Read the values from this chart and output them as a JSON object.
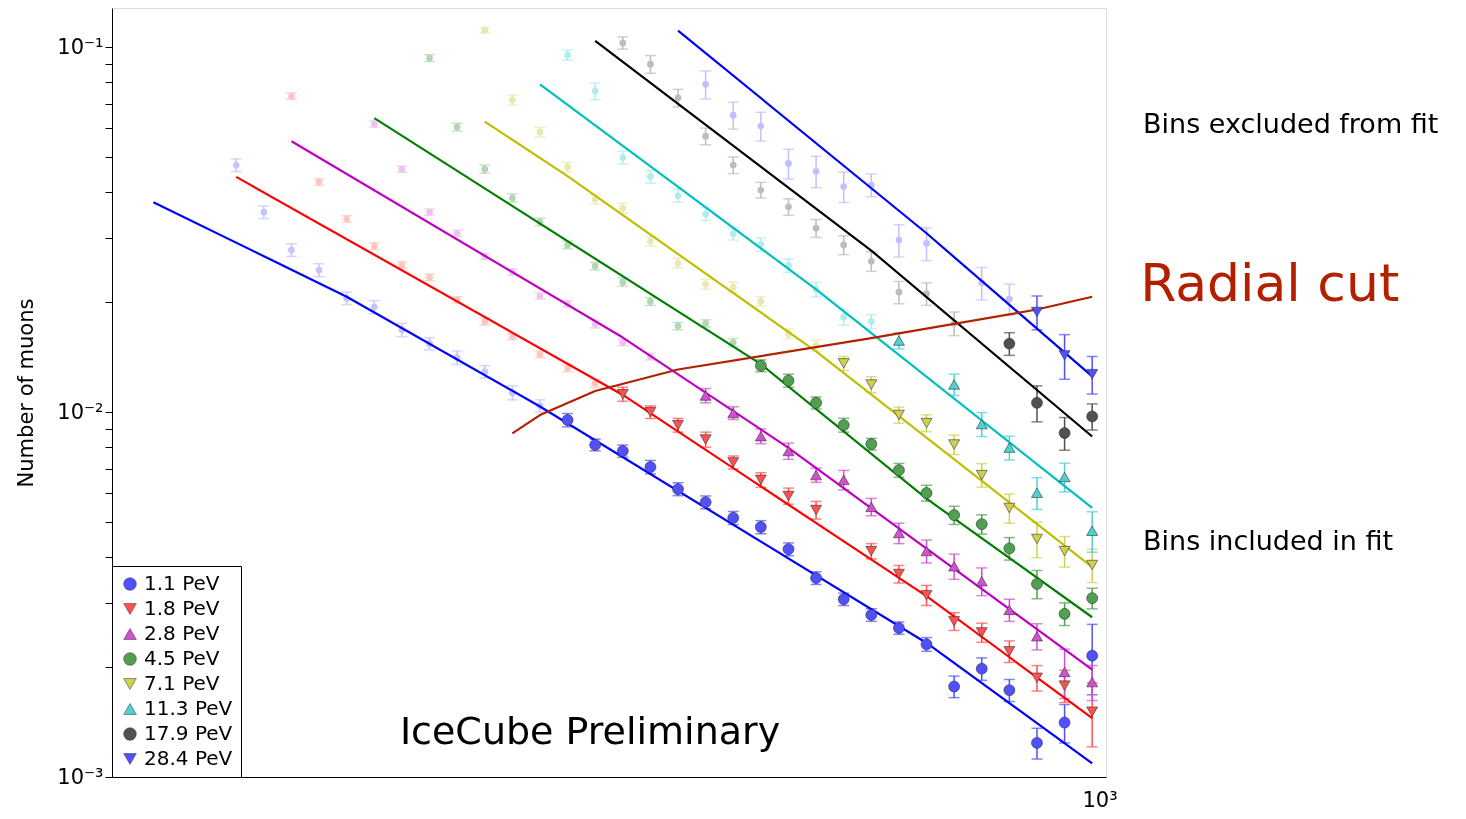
{
  "chart_data": {
    "type": "scatter",
    "ylabel": "Number of muons",
    "log": "y",
    "grid": false,
    "legend": "bottom left",
    "categories": [
      null,
      null,
      null,
      null,
      null,
      null,
      null,
      null,
      null,
      null,
      null,
      null,
      null,
      null,
      null,
      null,
      null,
      null,
      null,
      null,
      null,
      null,
      null,
      null,
      null,
      null,
      null,
      null,
      null,
      null,
      null,
      null,
      null,
      null,
      null,
      null
    ],
    "ylim": [
      0.001,
      0.128
    ],
    "yticks": [
      {
        "value": 0.001,
        "label": "10⁻³"
      },
      {
        "value": 0.002,
        "label": null
      },
      {
        "value": 0.003,
        "label": null
      },
      {
        "value": 0.004,
        "label": null
      },
      {
        "value": 0.005,
        "label": null
      },
      {
        "value": 0.006,
        "label": null
      },
      {
        "value": 0.007,
        "label": null
      },
      {
        "value": 0.008,
        "label": null
      },
      {
        "value": 0.009,
        "label": null
      },
      {
        "value": 0.01,
        "label": "10⁻²"
      },
      {
        "value": 0.02,
        "label": null
      },
      {
        "value": 0.03,
        "label": null
      },
      {
        "value": 0.04,
        "label": null
      },
      {
        "value": 0.05,
        "label": null
      },
      {
        "value": 0.06,
        "label": null
      },
      {
        "value": 0.07,
        "label": null
      },
      {
        "value": 0.08,
        "label": null
      },
      {
        "value": 0.09,
        "label": null
      },
      {
        "value": 0.1,
        "label": "10⁻¹"
      }
    ],
    "annotations": [
      "Bins excluded from fit",
      "Bins included in fit",
      "IceCube Preliminary",
      "10³"
    ],
    "series": [
      {
        "name": "1.1 PeV",
        "marker": "circle",
        "color": "#5050ff",
        "values": [
          null,
          null,
          null,
          null,
          null,
          null,
          null,
          null,
          null,
          null,
          null,
          null,
          null,
          null,
          null,
          null,
          0.00951,
          0.00813,
          0.00782,
          0.00707,
          0.00615,
          0.00566,
          0.00513,
          0.00484,
          0.00421,
          0.00351,
          0.00307,
          0.00278,
          0.00256,
          0.00231,
          0.00177,
          0.00198,
          0.00173,
          0.00124,
          0.00141,
          0.00215
        ],
        "errors": [
          null,
          null,
          null,
          null,
          null,
          null,
          null,
          null,
          null,
          null,
          null,
          null,
          null,
          null,
          null,
          null,
          0.0004,
          0.0003,
          0.0003,
          0.0003,
          0.00025,
          0.00023,
          0.00021,
          0.0002,
          0.00017,
          0.00014,
          0.00012,
          0.00011,
          0.0001,
          0.0001,
          0.00012,
          0.00014,
          0.00012,
          0.00012,
          0.00017,
          0.00047
        ]
      },
      {
        "name": "1.8 PeV",
        "marker": "triangle_down",
        "color": "#ff5050",
        "values": [
          null,
          null,
          null,
          null,
          null,
          null,
          null,
          null,
          null,
          null,
          null,
          null,
          null,
          null,
          null,
          null,
          null,
          null,
          0.0112,
          0.01,
          0.00921,
          0.00841,
          0.00728,
          0.00652,
          0.00589,
          0.00539,
          null,
          0.00416,
          0.0036,
          0.00315,
          0.00267,
          0.00249,
          0.00221,
          0.00187,
          0.00178,
          0.00151
        ],
        "errors": [
          null,
          null,
          null,
          null,
          null,
          null,
          null,
          null,
          null,
          null,
          null,
          null,
          null,
          null,
          null,
          null,
          null,
          null,
          0.0005,
          0.0004,
          0.0004,
          0.0004,
          0.0003,
          0.0003,
          0.0003,
          0.0003,
          null,
          0.0002,
          0.0002,
          0.0002,
          0.00015,
          0.00015,
          0.00015,
          0.00015,
          0.00018,
          0.0003
        ]
      },
      {
        "name": "2.8 PeV",
        "marker": "triangle",
        "color": "#d050d0",
        "values": [
          null,
          null,
          null,
          null,
          null,
          null,
          null,
          null,
          null,
          null,
          null,
          null,
          null,
          null,
          null,
          null,
          null,
          null,
          null,
          null,
          null,
          0.0111,
          0.00994,
          0.00859,
          0.00782,
          0.00672,
          0.00652,
          0.0055,
          0.00466,
          0.00416,
          0.00378,
          0.00344,
          0.00287,
          0.00243,
          0.00194,
          0.00182
        ],
        "errors": [
          null,
          null,
          null,
          null,
          null,
          null,
          null,
          null,
          null,
          null,
          null,
          null,
          null,
          null,
          null,
          null,
          null,
          null,
          null,
          null,
          null,
          0.0005,
          0.0004,
          0.0004,
          0.0004,
          0.0003,
          0.0004,
          0.0003,
          0.0003,
          0.0003,
          0.0003,
          0.0003,
          0.0002,
          0.0002,
          0.0003,
          0.0002
        ]
      },
      {
        "name": "4.5 PeV",
        "marker": "circle",
        "color": "#50a050",
        "values": [
          null,
          null,
          null,
          null,
          null,
          null,
          null,
          null,
          null,
          null,
          null,
          null,
          null,
          null,
          null,
          null,
          null,
          null,
          null,
          null,
          null,
          null,
          null,
          0.0134,
          0.0122,
          0.0106,
          0.00921,
          0.00817,
          0.00693,
          0.006,
          0.00522,
          0.00493,
          0.00423,
          0.00338,
          0.0028,
          0.00309
        ],
        "errors": [
          null,
          null,
          null,
          null,
          null,
          null,
          null,
          null,
          null,
          null,
          null,
          null,
          null,
          null,
          null,
          null,
          null,
          null,
          null,
          null,
          null,
          null,
          null,
          0.0005,
          0.0005,
          0.0004,
          0.0004,
          0.0003,
          0.0003,
          0.0003,
          0.0003,
          0.0003,
          0.0003,
          0.0003,
          0.0002,
          0.0002
        ]
      },
      {
        "name": "7.1 PeV",
        "marker": "triangle_down",
        "color": "#d0d050",
        "values": [
          null,
          null,
          null,
          null,
          null,
          null,
          null,
          null,
          null,
          null,
          null,
          null,
          null,
          null,
          null,
          null,
          null,
          null,
          null,
          null,
          null,
          null,
          null,
          null,
          null,
          null,
          0.0136,
          0.0119,
          0.00982,
          0.00933,
          0.00815,
          0.00672,
          0.00546,
          0.00449,
          0.00416,
          0.00381
        ],
        "errors": [
          null,
          null,
          null,
          null,
          null,
          null,
          null,
          null,
          null,
          null,
          null,
          null,
          null,
          null,
          null,
          null,
          null,
          null,
          null,
          null,
          null,
          null,
          null,
          null,
          null,
          null,
          0.0006,
          0.0006,
          0.0005,
          0.0005,
          0.0005,
          0.0005,
          0.0005,
          0.0005,
          0.0004,
          0.0004
        ]
      },
      {
        "name": "11.3 PeV",
        "marker": "triangle",
        "color": "#50d0d0",
        "values": [
          null,
          null,
          null,
          null,
          null,
          null,
          null,
          null,
          null,
          null,
          null,
          null,
          null,
          null,
          null,
          null,
          null,
          null,
          null,
          null,
          null,
          null,
          null,
          null,
          null,
          null,
          null,
          null,
          0.0157,
          null,
          0.0119,
          0.00927,
          0.00799,
          0.00601,
          0.00664,
          0.00473
        ],
        "errors": [
          null,
          null,
          null,
          null,
          null,
          null,
          null,
          null,
          null,
          null,
          null,
          null,
          null,
          null,
          null,
          null,
          null,
          null,
          null,
          null,
          null,
          null,
          null,
          null,
          null,
          null,
          null,
          null,
          0.0008,
          null,
          0.0008,
          0.0007,
          0.0006,
          0.0006,
          0.0006,
          0.0006
        ]
      },
      {
        "name": "17.9 PeV",
        "marker": "circle",
        "color": "#505050",
        "values": [
          null,
          null,
          null,
          null,
          null,
          null,
          null,
          null,
          null,
          null,
          null,
          null,
          null,
          null,
          null,
          null,
          null,
          null,
          null,
          null,
          null,
          null,
          null,
          null,
          null,
          null,
          null,
          null,
          null,
          null,
          null,
          null,
          0.0154,
          0.0106,
          0.00876,
          0.00973
        ],
        "errors": [
          null,
          null,
          null,
          null,
          null,
          null,
          null,
          null,
          null,
          null,
          null,
          null,
          null,
          null,
          null,
          null,
          null,
          null,
          null,
          null,
          null,
          null,
          null,
          null,
          null,
          null,
          null,
          null,
          null,
          null,
          null,
          null,
          0.0011,
          0.0012,
          0.0009,
          0.0008
        ]
      },
      {
        "name": "28.4 PeV",
        "marker": "triangle_down",
        "color": "#5050ff",
        "values": [
          null,
          null,
          null,
          null,
          null,
          null,
          null,
          null,
          null,
          null,
          null,
          null,
          null,
          null,
          null,
          null,
          null,
          null,
          null,
          null,
          null,
          null,
          null,
          null,
          null,
          null,
          null,
          null,
          null,
          null,
          null,
          null,
          null,
          0.0188,
          0.0143,
          0.0127
        ],
        "errors": [
          null,
          null,
          null,
          null,
          null,
          null,
          null,
          null,
          null,
          null,
          null,
          null,
          null,
          null,
          null,
          null,
          null,
          null,
          null,
          null,
          null,
          null,
          null,
          null,
          null,
          null,
          null,
          null,
          null,
          null,
          null,
          null,
          null,
          0.002,
          0.002,
          0.0015
        ]
      },
      {
        "marker": "circle",
        "color": "#c4c4ff",
        "values": [
          null,
          null,
          null,
          null,
          0.0475,
          0.0353,
          0.0278,
          0.0245,
          0.0205,
          0.0194,
          0.0168,
          0.0154,
          0.0141,
          0.0129,
          0.0113,
          0.0104,
          null,
          null,
          null,
          null,
          null,
          null,
          null,
          null,
          null,
          null,
          null,
          null,
          null,
          null,
          null,
          null,
          null,
          null,
          null,
          null
        ],
        "errors": [
          null,
          null,
          null,
          null,
          0.0019,
          0.0014,
          0.0011,
          0.001,
          0.0008,
          0.0008,
          0.0007,
          0.0006,
          0.0006,
          0.0005,
          0.0005,
          0.0004,
          null,
          null,
          null,
          null,
          null,
          null,
          null,
          null,
          null,
          null,
          null,
          null,
          null,
          null,
          null,
          null,
          null,
          null,
          null,
          null
        ]
      },
      {
        "marker": "circle",
        "color": "#ffc4c4",
        "values": [
          null,
          null,
          null,
          null,
          null,
          null,
          0.0734,
          0.0427,
          0.0338,
          0.0285,
          0.0253,
          0.0234,
          0.0203,
          0.0177,
          0.0161,
          0.0144,
          0.0132,
          0.012,
          null,
          null,
          null,
          null,
          null,
          null,
          null,
          null,
          null,
          null,
          null,
          null,
          null,
          null,
          null,
          null,
          null,
          null
        ],
        "errors": [
          null,
          null,
          null,
          null,
          null,
          null,
          0.0015,
          0.0009,
          0.0007,
          0.0006,
          0.0005,
          0.0005,
          0.0004,
          0.0004,
          0.0003,
          0.0003,
          0.0003,
          0.0003,
          null,
          null,
          null,
          null,
          null,
          null,
          null,
          null,
          null,
          null,
          null,
          null,
          null,
          null,
          null,
          null,
          null,
          null
        ]
      },
      {
        "marker": "circle",
        "color": "#eec4ee",
        "values": [
          null,
          null,
          null,
          null,
          null,
          null,
          null,
          null,
          null,
          0.0615,
          0.0463,
          0.0353,
          0.0309,
          0.0267,
          0.0242,
          0.0208,
          0.0198,
          0.0174,
          0.0155,
          0.0142,
          null,
          null,
          null,
          null,
          null,
          null,
          null,
          null,
          null,
          null,
          null,
          null,
          null,
          null,
          null,
          null
        ],
        "errors": [
          null,
          null,
          null,
          null,
          null,
          null,
          null,
          null,
          null,
          0.0012,
          0.0009,
          0.0007,
          0.0006,
          0.0005,
          0.0005,
          0.0004,
          0.0004,
          0.0004,
          0.0003,
          0.0003,
          null,
          null,
          null,
          null,
          null,
          null,
          null,
          null,
          null,
          null,
          null,
          null,
          null,
          null,
          null,
          null
        ]
      },
      {
        "marker": "circle",
        "color": "#b4d6b4",
        "values": [
          null,
          null,
          null,
          null,
          null,
          null,
          null,
          null,
          null,
          null,
          null,
          0.0933,
          0.0604,
          0.0463,
          0.0386,
          0.0332,
          0.0287,
          0.0251,
          0.0227,
          0.0201,
          0.0172,
          0.0175,
          0.0155,
          null,
          null,
          null,
          null,
          null,
          null,
          null,
          null,
          null,
          null,
          null,
          null,
          null
        ],
        "errors": [
          null,
          null,
          null,
          null,
          null,
          null,
          null,
          null,
          null,
          null,
          null,
          0.002,
          0.0015,
          0.0012,
          0.001,
          0.0008,
          0.0007,
          0.0006,
          0.0006,
          0.0005,
          0.0004,
          0.0004,
          0.0004,
          null,
          null,
          null,
          null,
          null,
          null,
          null,
          null,
          null,
          null,
          null,
          null,
          null
        ]
      },
      {
        "marker": "circle",
        "color": "#e8e8b0",
        "values": [
          null,
          null,
          null,
          null,
          null,
          null,
          null,
          null,
          null,
          null,
          null,
          null,
          null,
          0.1113,
          0.0716,
          0.0585,
          0.0469,
          0.0383,
          0.0362,
          0.0294,
          0.0256,
          0.0224,
          0.022,
          0.0201,
          0.0164,
          0.0152,
          null,
          null,
          null,
          null,
          null,
          null,
          null,
          null,
          null,
          null
        ],
        "errors": [
          null,
          null,
          null,
          null,
          null,
          null,
          null,
          null,
          null,
          null,
          null,
          null,
          null,
          0.002,
          0.0022,
          0.0018,
          0.0014,
          0.0012,
          0.0011,
          0.0009,
          0.0008,
          0.0007,
          0.0007,
          0.0006,
          0.0005,
          0.0005,
          null,
          null,
          null,
          null,
          null,
          null,
          null,
          null,
          null,
          null
        ]
      },
      {
        "marker": "circle",
        "color": "#b0ecec",
        "values": [
          null,
          null,
          null,
          null,
          null,
          null,
          null,
          null,
          null,
          null,
          null,
          null,
          null,
          null,
          null,
          null,
          0.0951,
          0.0758,
          0.0498,
          0.0442,
          0.0392,
          0.0349,
          0.0308,
          0.0288,
          0.0252,
          0.0217,
          0.0182,
          0.0177,
          null,
          null,
          null,
          null,
          null,
          null,
          null,
          null
        ],
        "errors": [
          null,
          null,
          null,
          null,
          null,
          null,
          null,
          null,
          null,
          null,
          null,
          null,
          null,
          null,
          null,
          null,
          0.003,
          0.004,
          0.002,
          0.0018,
          0.0016,
          0.0014,
          0.0012,
          0.0012,
          0.0011,
          0.001,
          0.0009,
          0.0008,
          null,
          null,
          null,
          null,
          null,
          null,
          null,
          null
        ]
      },
      {
        "marker": "circle",
        "color": "#bdbdbd",
        "values": [
          null,
          null,
          null,
          null,
          null,
          null,
          null,
          null,
          null,
          null,
          null,
          null,
          null,
          null,
          null,
          null,
          null,
          null,
          0.1027,
          0.0898,
          0.0726,
          0.057,
          0.0475,
          0.0406,
          0.0365,
          0.0319,
          0.0287,
          0.0259,
          0.0213,
          0.0211,
          0.0175,
          null,
          null,
          null,
          null,
          null
        ],
        "errors": [
          null,
          null,
          null,
          null,
          null,
          null,
          null,
          null,
          null,
          null,
          null,
          null,
          null,
          null,
          null,
          null,
          null,
          null,
          0.004,
          0.005,
          0.004,
          0.003,
          0.0025,
          0.002,
          0.0019,
          0.0018,
          0.0017,
          0.0016,
          0.0015,
          0.0015,
          0.0013,
          null,
          null,
          null,
          null,
          null
        ]
      },
      {
        "marker": "circle",
        "color": "#c0c0ff",
        "values": [
          null,
          null,
          null,
          null,
          null,
          null,
          null,
          null,
          null,
          null,
          null,
          null,
          null,
          null,
          null,
          null,
          null,
          null,
          null,
          null,
          null,
          0.0791,
          0.0651,
          0.0608,
          0.048,
          0.0457,
          0.0415,
          0.0419,
          0.0296,
          0.029,
          null,
          0.0226,
          0.0204,
          null,
          null,
          null
        ],
        "errors": [
          null,
          null,
          null,
          null,
          null,
          null,
          null,
          null,
          null,
          null,
          null,
          null,
          null,
          null,
          null,
          null,
          null,
          null,
          null,
          null,
          null,
          0.007,
          0.0055,
          0.0055,
          0.0045,
          0.0045,
          0.004,
          0.003,
          0.003,
          0.003,
          null,
          0.0023,
          0.002,
          null,
          null,
          null
        ]
      },
      {
        "type": "line",
        "color": "#0000ff",
        "values": [
          null,
          0.0376,
          null,
          null,
          null,
          null,
          null,
          null,
          0.0207,
          null,
          null,
          null,
          null,
          null,
          null,
          0.01036,
          null,
          null,
          null,
          null,
          null,
          null,
          null,
          null,
          null,
          null,
          null,
          null,
          null,
          0.00233,
          null,
          null,
          null,
          null,
          null,
          0.00109
        ]
      },
      {
        "type": "line",
        "color": "#ff0000",
        "values": [
          null,
          null,
          null,
          null,
          0.0441,
          null,
          null,
          null,
          null,
          null,
          null,
          null,
          null,
          null,
          null,
          null,
          null,
          null,
          0.01114,
          null,
          null,
          null,
          null,
          null,
          null,
          null,
          null,
          null,
          null,
          0.00313,
          null,
          null,
          null,
          null,
          null,
          0.00145
        ]
      },
      {
        "type": "line",
        "color": "#bf00bf",
        "values": [
          null,
          null,
          null,
          null,
          null,
          null,
          0.0552,
          null,
          null,
          null,
          null,
          null,
          null,
          null,
          null,
          null,
          null,
          null,
          0.016,
          null,
          null,
          null,
          null,
          null,
          0.00798,
          null,
          null,
          null,
          null,
          null,
          null,
          null,
          null,
          null,
          null,
          0.00197
        ]
      },
      {
        "type": "line",
        "color": "#008000",
        "values": [
          null,
          null,
          null,
          null,
          null,
          null,
          null,
          null,
          null,
          0.0639,
          null,
          null,
          null,
          null,
          null,
          null,
          null,
          null,
          null,
          null,
          null,
          null,
          null,
          0.01353,
          null,
          null,
          null,
          null,
          null,
          0.00579,
          null,
          null,
          null,
          null,
          null,
          0.00274
        ]
      },
      {
        "type": "line",
        "color": "#bfbf00",
        "values": [
          null,
          null,
          null,
          null,
          null,
          null,
          null,
          null,
          null,
          null,
          null,
          null,
          null,
          0.0625,
          null,
          null,
          0.0443,
          null,
          null,
          null,
          null,
          null,
          null,
          null,
          null,
          0.01466,
          null,
          null,
          null,
          null,
          null,
          null,
          null,
          null,
          null,
          0.00376
        ]
      },
      {
        "type": "line",
        "color": "#00bfbf",
        "values": [
          null,
          null,
          null,
          null,
          null,
          null,
          null,
          null,
          null,
          null,
          null,
          null,
          null,
          null,
          null,
          0.079,
          null,
          null,
          null,
          null,
          null,
          null,
          null,
          null,
          null,
          0.0217,
          null,
          null,
          null,
          null,
          null,
          null,
          null,
          null,
          null,
          0.00546
        ]
      },
      {
        "type": "line",
        "color": "#000000",
        "values": [
          null,
          null,
          null,
          null,
          null,
          null,
          null,
          null,
          null,
          null,
          null,
          null,
          null,
          null,
          null,
          null,
          null,
          0.1041,
          null,
          null,
          null,
          null,
          null,
          null,
          null,
          null,
          null,
          0.0277,
          null,
          null,
          null,
          null,
          null,
          null,
          null,
          0.00857
        ]
      },
      {
        "type": "line",
        "color": "#0000ff",
        "values": [
          null,
          null,
          null,
          null,
          null,
          null,
          null,
          null,
          null,
          null,
          null,
          null,
          null,
          null,
          null,
          null,
          null,
          null,
          null,
          null,
          0.111,
          null,
          null,
          null,
          null,
          null,
          null,
          null,
          null,
          0.0309,
          null,
          null,
          null,
          null,
          null,
          0.01253
        ]
      },
      {
        "name": "Radial cut",
        "type": "line",
        "color": "#b22000",
        "values": [
          null,
          null,
          null,
          null,
          null,
          null,
          null,
          null,
          null,
          null,
          null,
          null,
          null,
          null,
          0.00874,
          0.00981,
          null,
          0.01142,
          null,
          null,
          0.01308,
          null,
          null,
          null,
          null,
          null,
          null,
          0.01595,
          null,
          null,
          null,
          null,
          null,
          0.0191,
          null,
          0.0207
        ]
      }
    ]
  }
}
